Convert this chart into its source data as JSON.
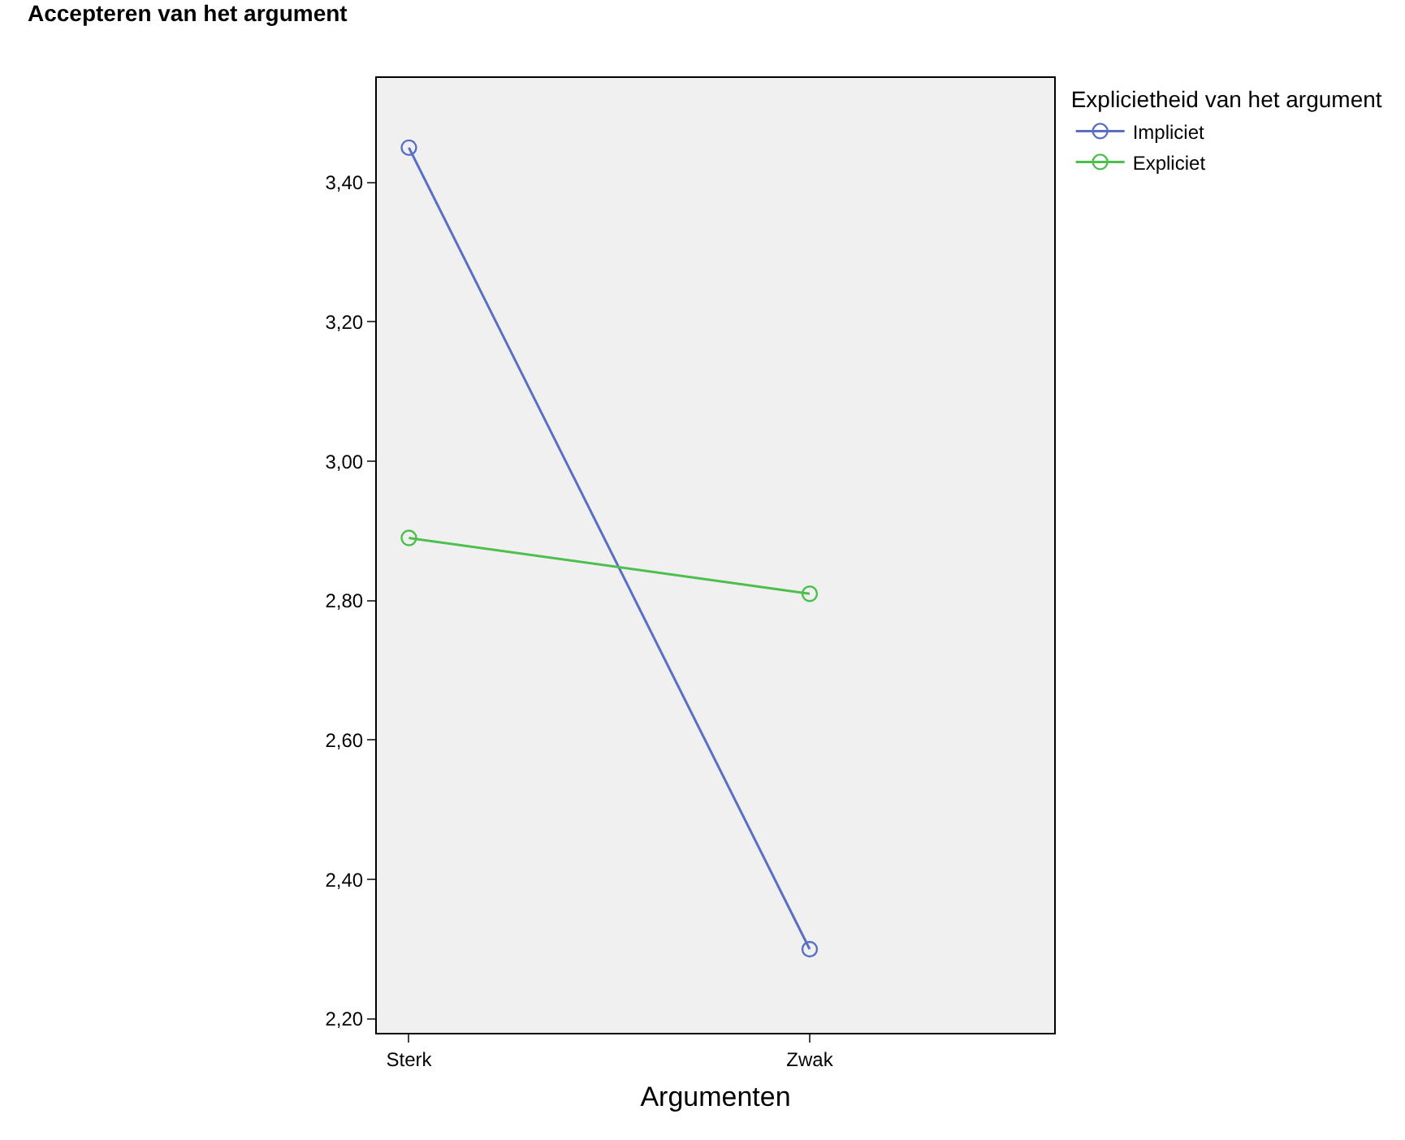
{
  "chart_data": {
    "type": "line",
    "ylabel": "Accepteren van het argument",
    "xlabel": "Argumenten",
    "legend_title": "Explicietheid van het argument",
    "categories": [
      "Sterk",
      "Zwak"
    ],
    "series": [
      {
        "name": "Impliciet",
        "color": "#5a6fc4",
        "values": [
          3.45,
          2.3
        ]
      },
      {
        "name": "Expliciet",
        "color": "#4cbf4c",
        "values": [
          2.89,
          2.81
        ]
      }
    ],
    "ylim": [
      2.18,
      3.55
    ],
    "yticks": [
      {
        "value": 2.2,
        "label": "2,20"
      },
      {
        "value": 2.4,
        "label": "2,40"
      },
      {
        "value": 2.6,
        "label": "2,60"
      },
      {
        "value": 2.8,
        "label": "2,80"
      },
      {
        "value": 3.0,
        "label": "3,00"
      },
      {
        "value": 3.2,
        "label": "3,20"
      },
      {
        "value": 3.4,
        "label": "3,40"
      }
    ],
    "grid": false,
    "legend": "top right",
    "marker": "circle",
    "line_style": "solid"
  }
}
